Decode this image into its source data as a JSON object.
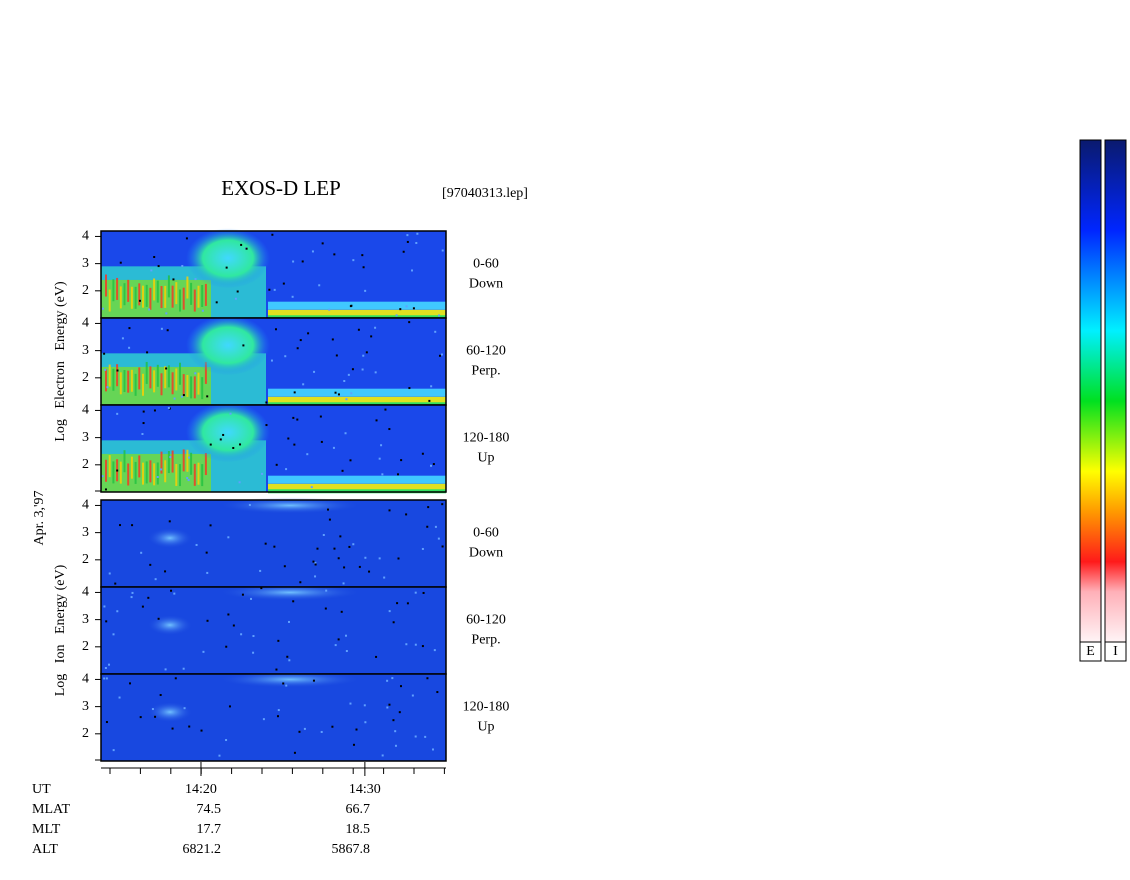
{
  "chart_data": {
    "type": "spectrogram",
    "title": "EXOS-D LEP",
    "file": "[97040313.lep]",
    "date": "Apr. 3,'97",
    "ylim": [
      1,
      4.2
    ],
    "yticks": [
      2,
      3,
      4
    ],
    "xlim": [
      13.9,
      34.95
    ],
    "xticks": [
      {
        "value": 20,
        "label": "14:20"
      },
      {
        "value": 30,
        "label": "14:30"
      }
    ],
    "groups": [
      {
        "ylabel": "Log   Electron   Energy (eV)",
        "panels": [
          [
            "0-60",
            "Down"
          ],
          [
            "60-120",
            "Perp."
          ],
          [
            "120-180",
            "Up"
          ]
        ]
      },
      {
        "ylabel": "Log   Ion   Energy (eV)",
        "panels": [
          [
            "0-60",
            "Down"
          ],
          [
            "60-120",
            "Perp."
          ],
          [
            "120-180",
            "Up"
          ]
        ]
      }
    ],
    "orbit": {
      "labels": [
        "UT",
        "MLAT",
        "MLT",
        "ALT"
      ],
      "rows": [
        [
          74.5,
          66.7
        ],
        [
          17.7,
          18.5
        ],
        [
          6821.2,
          5867.8
        ]
      ]
    },
    "colorbars": [
      "E",
      "I"
    ]
  }
}
